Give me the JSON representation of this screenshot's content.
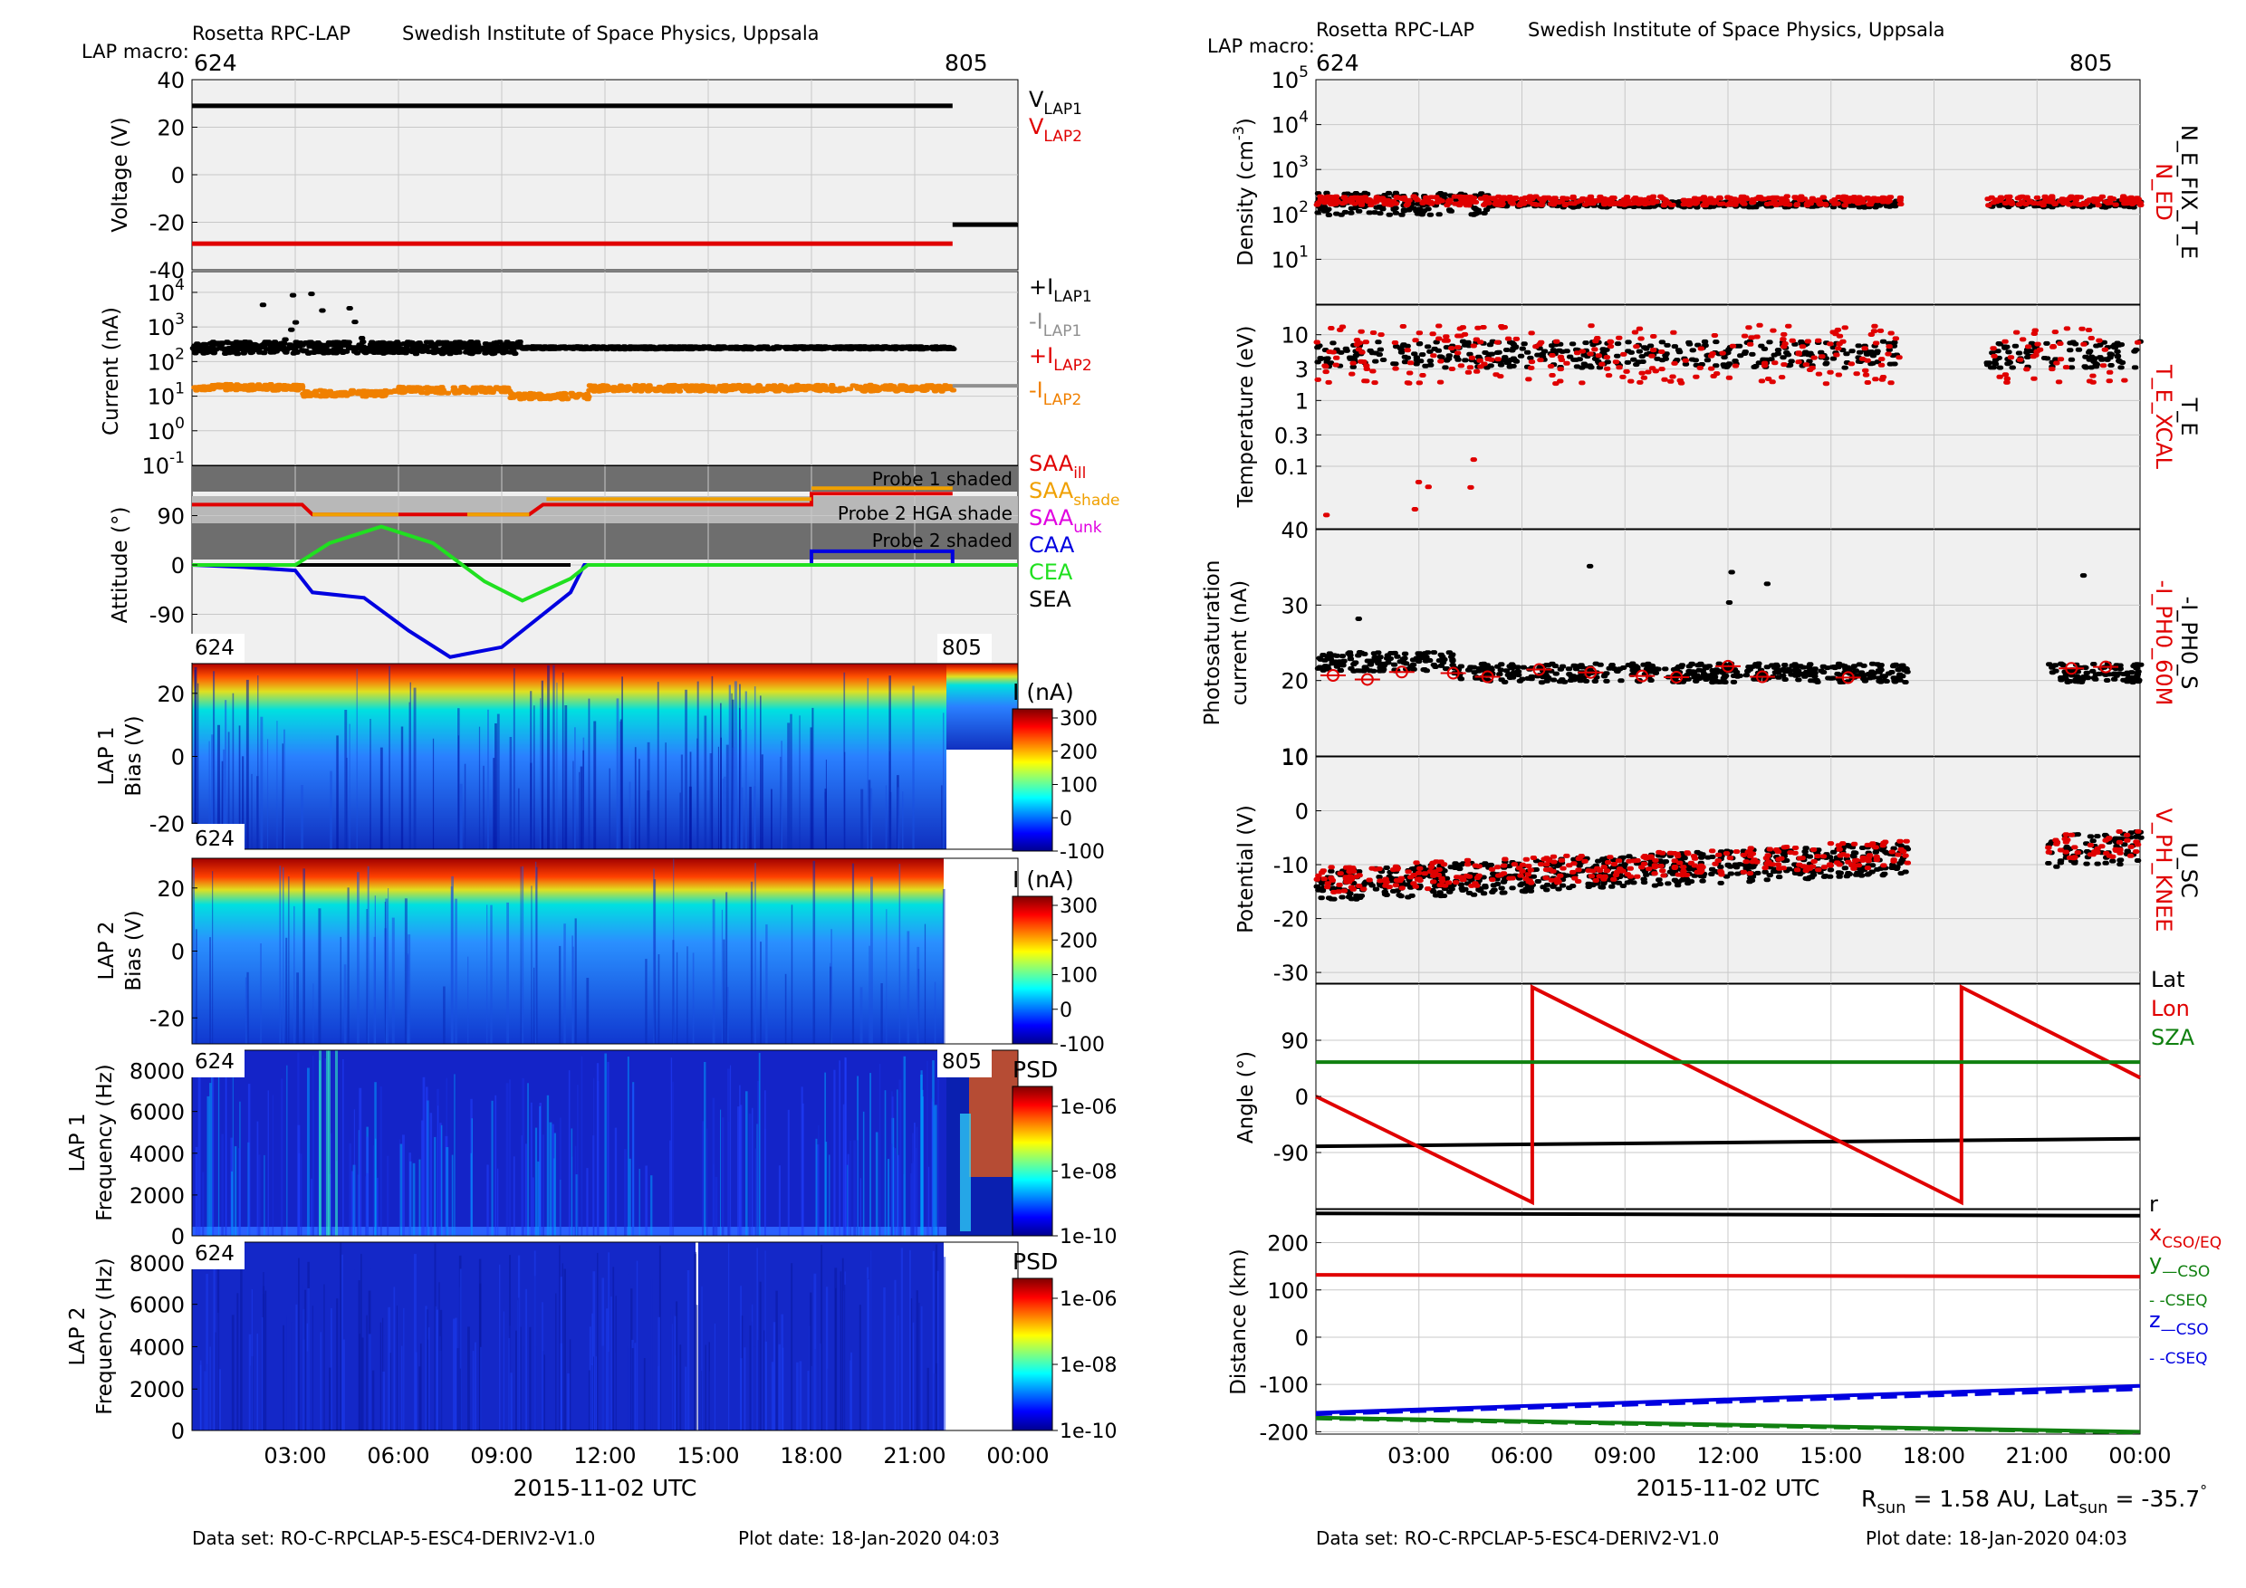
{
  "left": {
    "header_left": "Rosetta RPC-LAP",
    "header_right": "Swedish Institute of Space Physics, Uppsala",
    "macro_label": "LAP macro:",
    "macro_start": "624",
    "macro_end": "805",
    "time_ticks": [
      "03:00",
      "06:00",
      "09:00",
      "12:00",
      "15:00",
      "18:00",
      "21:00",
      "00:00"
    ],
    "xlabel": "2015-11-02 UTC",
    "footer_dataset": "Data set: RO-C-RPCLAP-5-ESC4-DERIV2-V1.0",
    "footer_plotdate": "Plot date: 18-Jan-2020 04:03"
  },
  "right": {
    "header_left": "Rosetta RPC-LAP",
    "header_right": "Swedish Institute of Space Physics, Uppsala",
    "macro_label": "LAP macro:",
    "macro_start": "624",
    "macro_end": "805",
    "time_ticks": [
      "03:00",
      "06:00",
      "09:00",
      "12:00",
      "15:00",
      "18:00",
      "21:00",
      "00:00"
    ],
    "xlabel": "2015-11-02 UTC",
    "rsun_text": "R",
    "rsun_sub": "sun",
    "rsun_value": " = 1.58 AU, Lat",
    "lat_sub": "sun",
    "lat_value": " = -35.7",
    "degree": "°",
    "footer_dataset": "Data set: RO-C-RPCLAP-5-ESC4-DERIV2-V1.0",
    "footer_plotdate": "Plot date: 18-Jan-2020 04:03"
  },
  "chart_data": [
    {
      "type": "line",
      "panel": "voltage",
      "ylabel": "Voltage (V)",
      "ylim": [
        -40,
        40
      ],
      "yticks": [
        "40",
        "20",
        "0",
        "-20",
        "-40"
      ],
      "legend": [
        {
          "text": "V",
          "sub": "LAP1",
          "color": "#000000"
        },
        {
          "text": "V",
          "sub": "LAP2",
          "color": "#e00000"
        }
      ],
      "series": [
        {
          "name": "VLAP1",
          "color": "#000000",
          "segments": [
            {
              "t0": 0,
              "t1": 22.1,
              "v": 29
            },
            {
              "t0": 22.1,
              "t1": 24,
              "v": -21
            }
          ]
        },
        {
          "name": "VLAP2",
          "color": "#e00000",
          "segments": [
            {
              "t0": 0,
              "t1": 22.1,
              "v": -29
            }
          ]
        }
      ]
    },
    {
      "type": "scatter",
      "panel": "current",
      "ylabel": "Current (nA)",
      "scale": "log",
      "yticks": [
        "10^4",
        "10^3",
        "10^2",
        "10^1",
        "10^0",
        "10^-1"
      ],
      "legend": [
        {
          "text": "+I",
          "sub": "LAP1",
          "color": "#000000"
        },
        {
          "text": "-I",
          "sub": "LAP1",
          "color": "#909090"
        },
        {
          "text": "+I",
          "sub": "LAP2",
          "color": "#e00000"
        },
        {
          "text": "-I",
          "sub": "LAP2",
          "color": "#f08000"
        }
      ],
      "series": [
        {
          "name": "+I LAP1",
          "color": "#000000",
          "level": 250,
          "t0": 0,
          "t1": 22.1
        },
        {
          "name": "-I LAP1",
          "color": "#909090",
          "level": 20,
          "t0": 22.1,
          "t1": 24
        },
        {
          "name": "-I LAP2",
          "color": "#f08000",
          "segments": [
            {
              "t0": 0,
              "t1": 3.2,
              "v": 18
            },
            {
              "t0": 3.2,
              "t1": 5.7,
              "v": 12
            },
            {
              "t0": 5.7,
              "t1": 9.2,
              "v": 15
            },
            {
              "t0": 9.2,
              "t1": 11.5,
              "v": 10
            },
            {
              "t0": 11.5,
              "t1": 22.1,
              "v": 17
            }
          ]
        }
      ]
    },
    {
      "type": "line",
      "panel": "attitude",
      "ylabel": "Attitude (°)",
      "ylim": [
        -180,
        180
      ],
      "yticks": [
        "90",
        "0",
        "-90"
      ],
      "shade_labels": [
        "Probe 1 shaded",
        "Probe 2 HGA shade",
        "Probe 2 shaded"
      ],
      "legend": [
        {
          "text": "SAA",
          "sub": "ill",
          "color": "#e00000"
        },
        {
          "text": "SAA",
          "sub": "shade",
          "color": "#f0a000"
        },
        {
          "text": "SAA",
          "sub": "unk",
          "color": "#e000e0"
        },
        {
          "text": "CAA",
          "sub": "",
          "color": "#0000e0"
        },
        {
          "text": "CEA",
          "sub": "",
          "color": "#20e020"
        },
        {
          "text": "SEA",
          "sub": "",
          "color": "#000000"
        }
      ]
    },
    {
      "type": "heatmap",
      "panel": "lap1-bias",
      "ylabel": "LAP 1 Bias (V)",
      "yticks": [
        "20",
        "0",
        "-20"
      ],
      "colorbar_label": "I (nA)",
      "colorbar_ticks": [
        "300",
        "200",
        "100",
        "0",
        "-100"
      ],
      "macro_start": "624",
      "macro_end": "805"
    },
    {
      "type": "heatmap",
      "panel": "lap2-bias",
      "ylabel": "LAP 2 Bias (V)",
      "yticks": [
        "20",
        "0",
        "-20"
      ],
      "colorbar_label": "I (nA)",
      "colorbar_ticks": [
        "300",
        "200",
        "100",
        "0",
        "-100"
      ],
      "macro_start": "624"
    },
    {
      "type": "heatmap",
      "panel": "lap1-psd",
      "ylabel": "LAP 1 Frequency (Hz)",
      "yticks": [
        "8000",
        "6000",
        "4000",
        "2000",
        "0"
      ],
      "colorbar_label": "PSD",
      "colorbar_ticks": [
        "1e-06",
        "1e-08",
        "1e-10"
      ],
      "macro_start": "624",
      "macro_end": "805"
    },
    {
      "type": "heatmap",
      "panel": "lap2-psd",
      "ylabel": "LAP 2 Frequency (Hz)",
      "yticks": [
        "8000",
        "6000",
        "4000",
        "2000",
        "0"
      ],
      "colorbar_label": "PSD",
      "colorbar_ticks": [
        "1e-06",
        "1e-08",
        "1e-10"
      ],
      "macro_start": "624"
    },
    {
      "type": "scatter",
      "panel": "density",
      "ylabel": "Density (cm-3)",
      "scale": "log",
      "yticks": [
        "10^5",
        "10^4",
        "10^3",
        "10^2",
        "10^1"
      ],
      "side_labels": [
        {
          "text": "N_ED",
          "color": "#e00000"
        },
        {
          "text": "N_E_FIX_T_E",
          "color": "#000000"
        }
      ],
      "series": [
        {
          "name": "N_ED",
          "color": "#e00000",
          "level": 200
        },
        {
          "name": "N_E_FIX_T_E",
          "color": "#000000",
          "level": 170
        }
      ]
    },
    {
      "type": "scatter",
      "panel": "temperature",
      "ylabel": "Temperature (eV)",
      "scale": "log",
      "yticks": [
        "10",
        "3",
        "1",
        "0.3",
        "0.1"
      ],
      "side_labels": [
        {
          "text": "T_E_XCAL",
          "color": "#e00000"
        },
        {
          "text": "T_E",
          "color": "#000000"
        }
      ],
      "series": [
        {
          "name": "T_E_XCAL",
          "color": "#e00000",
          "level": 5
        },
        {
          "name": "T_E",
          "color": "#000000",
          "level": 5
        }
      ]
    },
    {
      "type": "scatter",
      "panel": "photosaturation",
      "ylabel": "Photosaturation current (nA)",
      "ylim": [
        10,
        40
      ],
      "yticks": [
        "40",
        "30",
        "20",
        "10"
      ],
      "side_labels": [
        {
          "text": "-I_PH0_60M",
          "color": "#e00000"
        },
        {
          "text": "-I_PH0_S",
          "color": "#000000"
        }
      ],
      "series": [
        {
          "name": "-I_PH0_S",
          "color": "#000000",
          "level": 21
        },
        {
          "name": "-I_PH0_60M",
          "color": "#e00000",
          "level": 21
        }
      ]
    },
    {
      "type": "scatter",
      "panel": "potential",
      "ylabel": "Potential (V)",
      "ylim": [
        -32,
        10
      ],
      "yticks": [
        "10",
        "0",
        "-10",
        "-20",
        "-30"
      ],
      "side_labels": [
        {
          "text": "V_PH_KNEE",
          "color": "#e00000"
        },
        {
          "text": "U_SC",
          "color": "#000000"
        }
      ],
      "series": [
        {
          "name": "U_SC",
          "color": "#000000",
          "level": -12
        },
        {
          "name": "V_PH_KNEE",
          "color": "#e00000",
          "level": -11
        }
      ]
    },
    {
      "type": "line",
      "panel": "angle",
      "ylabel": "Angle (°)",
      "ylim": [
        -180,
        180
      ],
      "yticks": [
        "90",
        "0",
        "-90"
      ],
      "legend": [
        {
          "text": "Lat",
          "color": "#000000"
        },
        {
          "text": "Lon",
          "color": "#e00000"
        },
        {
          "text": "SZA",
          "color": "#108010"
        }
      ],
      "series": [
        {
          "name": "Lat",
          "color": "#000000",
          "points": [
            [
              0,
              -80
            ],
            [
              24,
              -68
            ]
          ]
        },
        {
          "name": "Lon",
          "color": "#e00000",
          "points": [
            [
              0,
              0
            ],
            [
              6.3,
              -170
            ],
            [
              6.3,
              175
            ],
            [
              18.8,
              -170
            ],
            [
              18.8,
              175
            ],
            [
              24,
              30
            ]
          ]
        },
        {
          "name": "SZA",
          "color": "#108010",
          "points": [
            [
              0,
              55
            ],
            [
              24,
              55
            ]
          ]
        }
      ]
    },
    {
      "type": "line",
      "panel": "distance",
      "ylabel": "Distance (km)",
      "ylim": [
        -205,
        270
      ],
      "yticks": [
        "200",
        "100",
        "0",
        "-100",
        "-200"
      ],
      "legend": [
        {
          "text": "r",
          "sub": "",
          "color": "#000000"
        },
        {
          "text": "x",
          "sub": "CSO/EQ",
          "color": "#e00000"
        },
        {
          "text": "y",
          "sub": "—CSO",
          "color": "#108010"
        },
        {
          "text": "",
          "sub": "- -CSEQ",
          "color": "#108010"
        },
        {
          "text": "z",
          "sub": "—CSO",
          "color": "#0000e0"
        },
        {
          "text": "",
          "sub": "- -CSEQ",
          "color": "#0000e0"
        }
      ],
      "series": [
        {
          "name": "r",
          "color": "#000000",
          "points": [
            [
              0,
              262
            ],
            [
              24,
              257
            ]
          ]
        },
        {
          "name": "x",
          "color": "#e00000",
          "points": [
            [
              0,
              132
            ],
            [
              24,
              128
            ]
          ]
        },
        {
          "name": "y CSO",
          "color": "#108010",
          "points": [
            [
              0,
              -170
            ],
            [
              24,
              -200
            ]
          ]
        },
        {
          "name": "y CSEQ",
          "color": "#108010",
          "dash": true,
          "points": [
            [
              0,
              -172
            ],
            [
              24,
              -202
            ]
          ]
        },
        {
          "name": "z CSO",
          "color": "#0000e0",
          "points": [
            [
              0,
              -160
            ],
            [
              24,
              -103
            ]
          ]
        },
        {
          "name": "z CSEQ",
          "color": "#0000e0",
          "dash": true,
          "points": [
            [
              0,
              -163
            ],
            [
              24,
              -110
            ]
          ]
        }
      ]
    }
  ]
}
